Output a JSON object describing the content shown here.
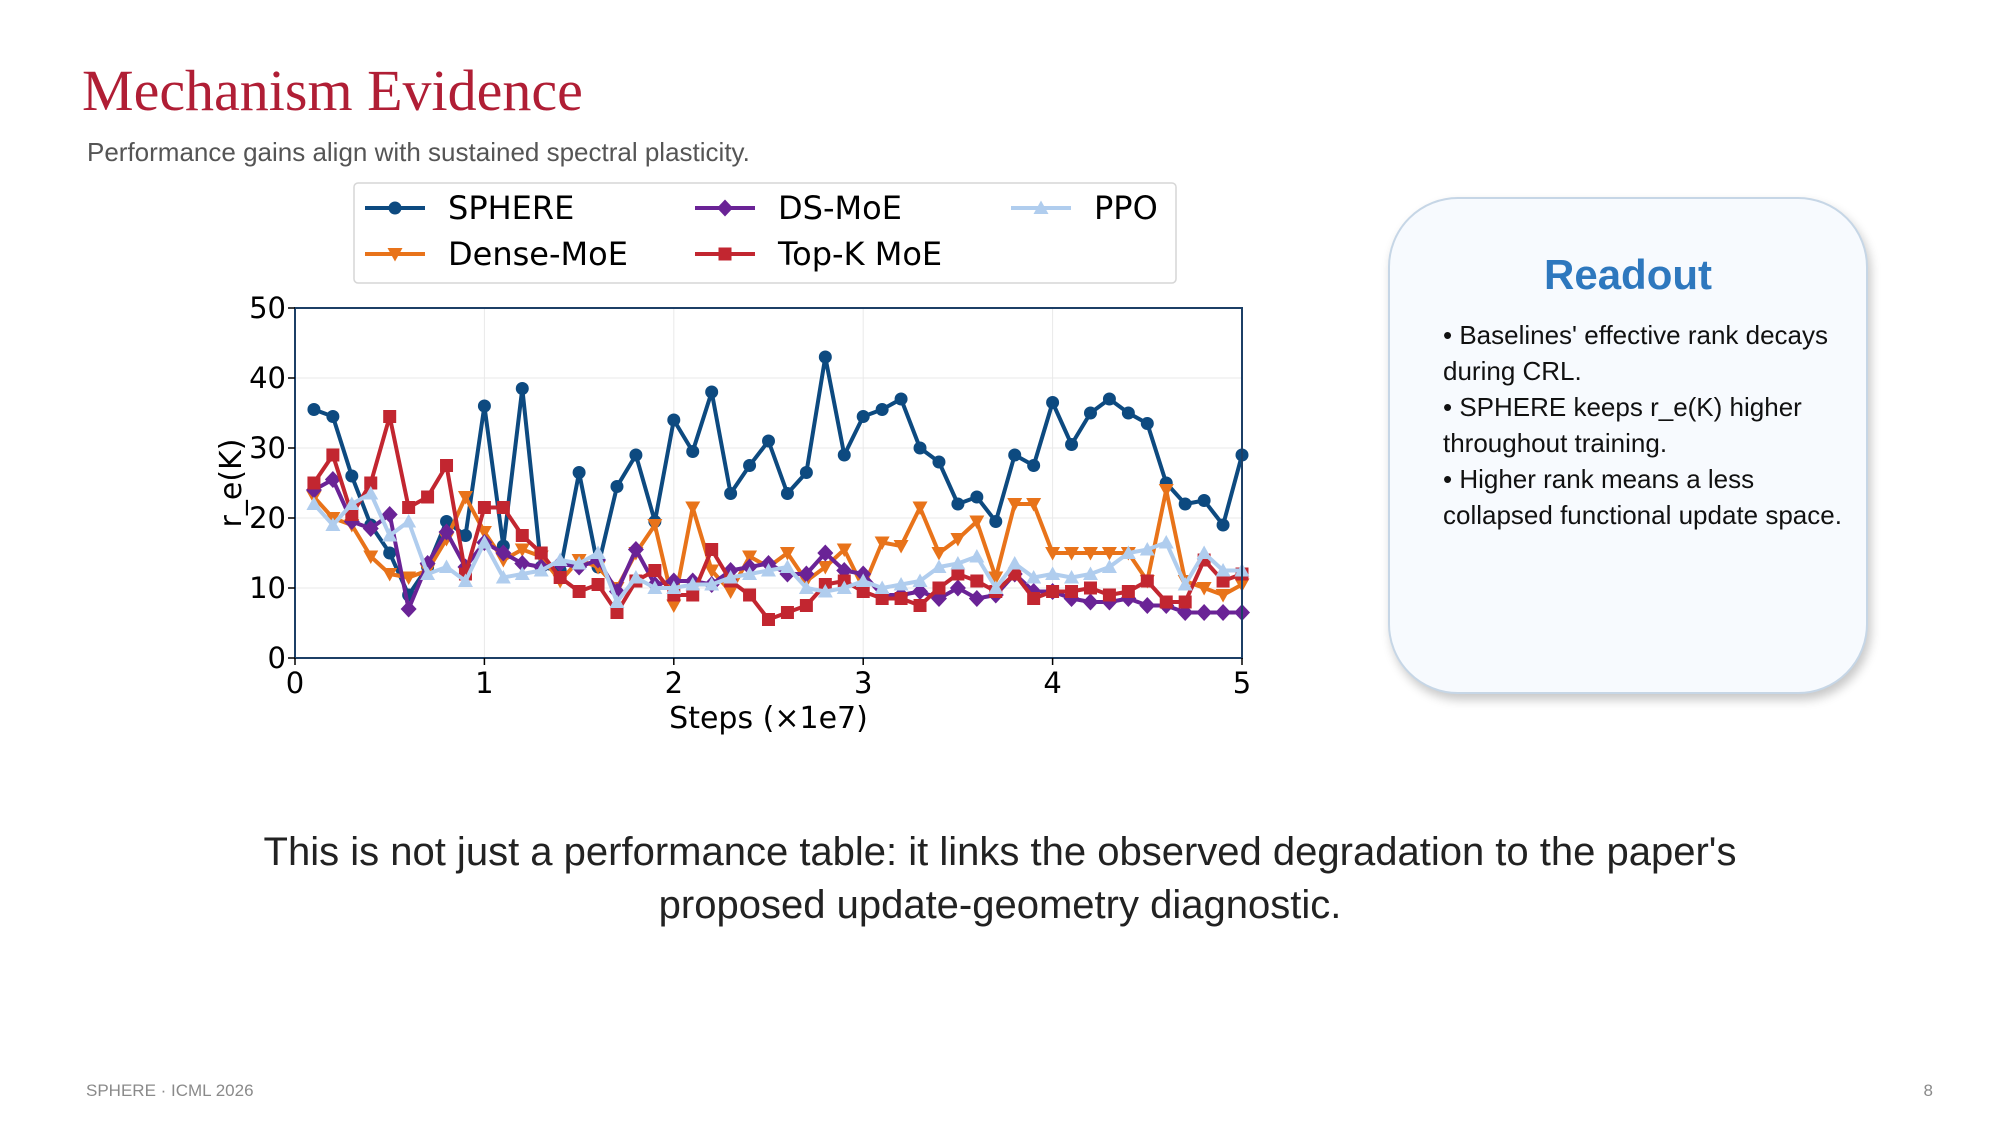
{
  "slide": {
    "title": "Mechanism Evidence",
    "subtitle": "Performance gains align with sustained spectral plasticity.",
    "takeaway": "This is not just a performance table: it links the observed degradation to the paper's proposed update-geometry diagnostic.",
    "footer_left": "SPHERE · ICML 2026",
    "page_number": "8"
  },
  "readout": {
    "title": "Readout",
    "bullets": [
      "• Baselines' effective rank decays during CRL.",
      "• SPHERE keeps r_e(K) higher throughout training.",
      "• Higher rank means a less collapsed functional update space."
    ]
  },
  "chart_data": {
    "type": "line",
    "title": "",
    "xlabel": "Steps (×1e7)",
    "ylabel": "r_e(K)",
    "xlim": [
      0,
      5
    ],
    "ylim": [
      0,
      50
    ],
    "xticks": [
      "0",
      "1",
      "2",
      "3",
      "4",
      "5"
    ],
    "yticks": [
      "0",
      "10",
      "20",
      "30",
      "40",
      "50"
    ],
    "grid": true,
    "legend_position": "top",
    "series": [
      {
        "name": "SPHERE",
        "color": "#0d4a80",
        "marker": "circle",
        "x": [
          0.1,
          0.2,
          0.3,
          0.4,
          0.5,
          0.6,
          0.7,
          0.8,
          0.9,
          1.0,
          1.1,
          1.2,
          1.3,
          1.4,
          1.5,
          1.6,
          1.7,
          1.8,
          1.9,
          2.0,
          2.1,
          2.2,
          2.3,
          2.4,
          2.5,
          2.6,
          2.7,
          2.8,
          2.9,
          3.0,
          3.1,
          3.2,
          3.3,
          3.4,
          3.5,
          3.6,
          3.7,
          3.8,
          3.9,
          4.0,
          4.1,
          4.2,
          4.3,
          4.4,
          4.5,
          4.6,
          4.7,
          4.8,
          4.9,
          5.0
        ],
        "y": [
          35.5,
          34.5,
          26,
          19,
          15,
          9,
          13,
          19.5,
          17.5,
          36,
          16,
          38.5,
          13,
          12.5,
          26.5,
          13,
          24.5,
          29,
          19.5,
          34,
          29.5,
          38,
          23.5,
          27.5,
          31,
          23.5,
          26.5,
          43,
          29,
          34.5,
          35.5,
          37,
          30,
          28,
          22,
          23,
          19.5,
          29,
          27.5,
          36.5,
          30.5,
          35,
          37,
          35,
          33.5,
          25,
          22,
          22.5,
          19,
          29
        ]
      },
      {
        "name": "Dense-MoE",
        "color": "#e8731a",
        "marker": "triangle-down",
        "x": [
          0.1,
          0.2,
          0.3,
          0.4,
          0.5,
          0.6,
          0.7,
          0.8,
          0.9,
          1.0,
          1.1,
          1.2,
          1.3,
          1.4,
          1.5,
          1.6,
          1.7,
          1.8,
          1.9,
          2.0,
          2.1,
          2.2,
          2.3,
          2.4,
          2.5,
          2.6,
          2.7,
          2.8,
          2.9,
          3.0,
          3.1,
          3.2,
          3.3,
          3.4,
          3.5,
          3.6,
          3.7,
          3.8,
          3.9,
          4.0,
          4.1,
          4.2,
          4.3,
          4.4,
          4.5,
          4.6,
          4.7,
          4.8,
          4.9,
          5.0
        ],
        "y": [
          23,
          20,
          19,
          14.5,
          12,
          11.5,
          12.5,
          17,
          23,
          18,
          14,
          15.5,
          14.5,
          11,
          14,
          13,
          10,
          15,
          19,
          7.5,
          21.5,
          12.5,
          9.5,
          14.5,
          13,
          15,
          11,
          13,
          15.5,
          10,
          16.5,
          16,
          21.5,
          15,
          17,
          19.5,
          11.5,
          22,
          22,
          15,
          15,
          15,
          15,
          15,
          11,
          24,
          11,
          10,
          9,
          10.5
        ]
      },
      {
        "name": "DS-MoE",
        "color": "#6a2396",
        "marker": "diamond",
        "x": [
          0.1,
          0.2,
          0.3,
          0.4,
          0.5,
          0.6,
          0.7,
          0.8,
          0.9,
          1.0,
          1.1,
          1.2,
          1.3,
          1.4,
          1.5,
          1.6,
          1.7,
          1.8,
          1.9,
          2.0,
          2.1,
          2.2,
          2.3,
          2.4,
          2.5,
          2.6,
          2.7,
          2.8,
          2.9,
          3.0,
          3.1,
          3.2,
          3.3,
          3.4,
          3.5,
          3.6,
          3.7,
          3.8,
          3.9,
          4.0,
          4.1,
          4.2,
          4.3,
          4.4,
          4.5,
          4.6,
          4.7,
          4.8,
          4.9,
          5.0
        ],
        "y": [
          24,
          25.5,
          19.5,
          18.5,
          20.5,
          7,
          13.5,
          18,
          13,
          16.5,
          15,
          13.5,
          13,
          13.5,
          13,
          14,
          9.5,
          15.5,
          10.5,
          11,
          11,
          10.5,
          12.5,
          13,
          13.5,
          12,
          12,
          15,
          12.5,
          12,
          9,
          9,
          9.5,
          8.5,
          10,
          8.5,
          9,
          12,
          9.5,
          9.5,
          8.5,
          8,
          8,
          8.5,
          7.5,
          7.5,
          6.5,
          6.5,
          6.5,
          6.5
        ]
      },
      {
        "name": "Top-K MoE",
        "color": "#c22630",
        "marker": "square",
        "x": [
          0.1,
          0.2,
          0.3,
          0.4,
          0.5,
          0.6,
          0.7,
          0.8,
          0.9,
          1.0,
          1.1,
          1.2,
          1.3,
          1.4,
          1.5,
          1.6,
          1.7,
          1.8,
          1.9,
          2.0,
          2.1,
          2.2,
          2.3,
          2.4,
          2.5,
          2.6,
          2.7,
          2.8,
          2.9,
          3.0,
          3.1,
          3.2,
          3.3,
          3.4,
          3.5,
          3.6,
          3.7,
          3.8,
          3.9,
          4.0,
          4.1,
          4.2,
          4.3,
          4.4,
          4.5,
          4.6,
          4.7,
          4.8,
          4.9,
          5.0
        ],
        "y": [
          25,
          29,
          20.5,
          25,
          34.5,
          21.5,
          23,
          27.5,
          12,
          21.5,
          21.5,
          17.5,
          15,
          11.5,
          9.5,
          10.5,
          6.5,
          11,
          12.5,
          9,
          9,
          15.5,
          11,
          9,
          5.5,
          6.5,
          7.5,
          10.5,
          11,
          9.5,
          8.5,
          8.5,
          7.5,
          10,
          12,
          11,
          9.5,
          12,
          8.5,
          9.5,
          9.5,
          10,
          9,
          9.5,
          11,
          8,
          8,
          14,
          11,
          12
        ]
      },
      {
        "name": "PPO",
        "color": "#b0cdee",
        "marker": "triangle-up",
        "x": [
          0.1,
          0.2,
          0.3,
          0.4,
          0.5,
          0.6,
          0.7,
          0.8,
          0.9,
          1.0,
          1.1,
          1.2,
          1.3,
          1.4,
          1.5,
          1.6,
          1.7,
          1.8,
          1.9,
          2.0,
          2.1,
          2.2,
          2.3,
          2.4,
          2.5,
          2.6,
          2.7,
          2.8,
          2.9,
          3.0,
          3.1,
          3.2,
          3.3,
          3.4,
          3.5,
          3.6,
          3.7,
          3.8,
          3.9,
          4.0,
          4.1,
          4.2,
          4.3,
          4.4,
          4.5,
          4.6,
          4.7,
          4.8,
          4.9,
          5.0
        ],
        "y": [
          22,
          19,
          22,
          23.5,
          17.5,
          19.5,
          12,
          13,
          11,
          16.5,
          11.5,
          12,
          12.5,
          14,
          13.5,
          15,
          8,
          11.5,
          10,
          10,
          10.5,
          10.5,
          11.5,
          12,
          12.5,
          13,
          10,
          9.5,
          10,
          11,
          10,
          10.5,
          11,
          13,
          13.5,
          14.5,
          10,
          13.5,
          11.5,
          12,
          11.5,
          12,
          13,
          15,
          15.5,
          16.5,
          10.5,
          15,
          12.5,
          12.5
        ]
      }
    ]
  }
}
